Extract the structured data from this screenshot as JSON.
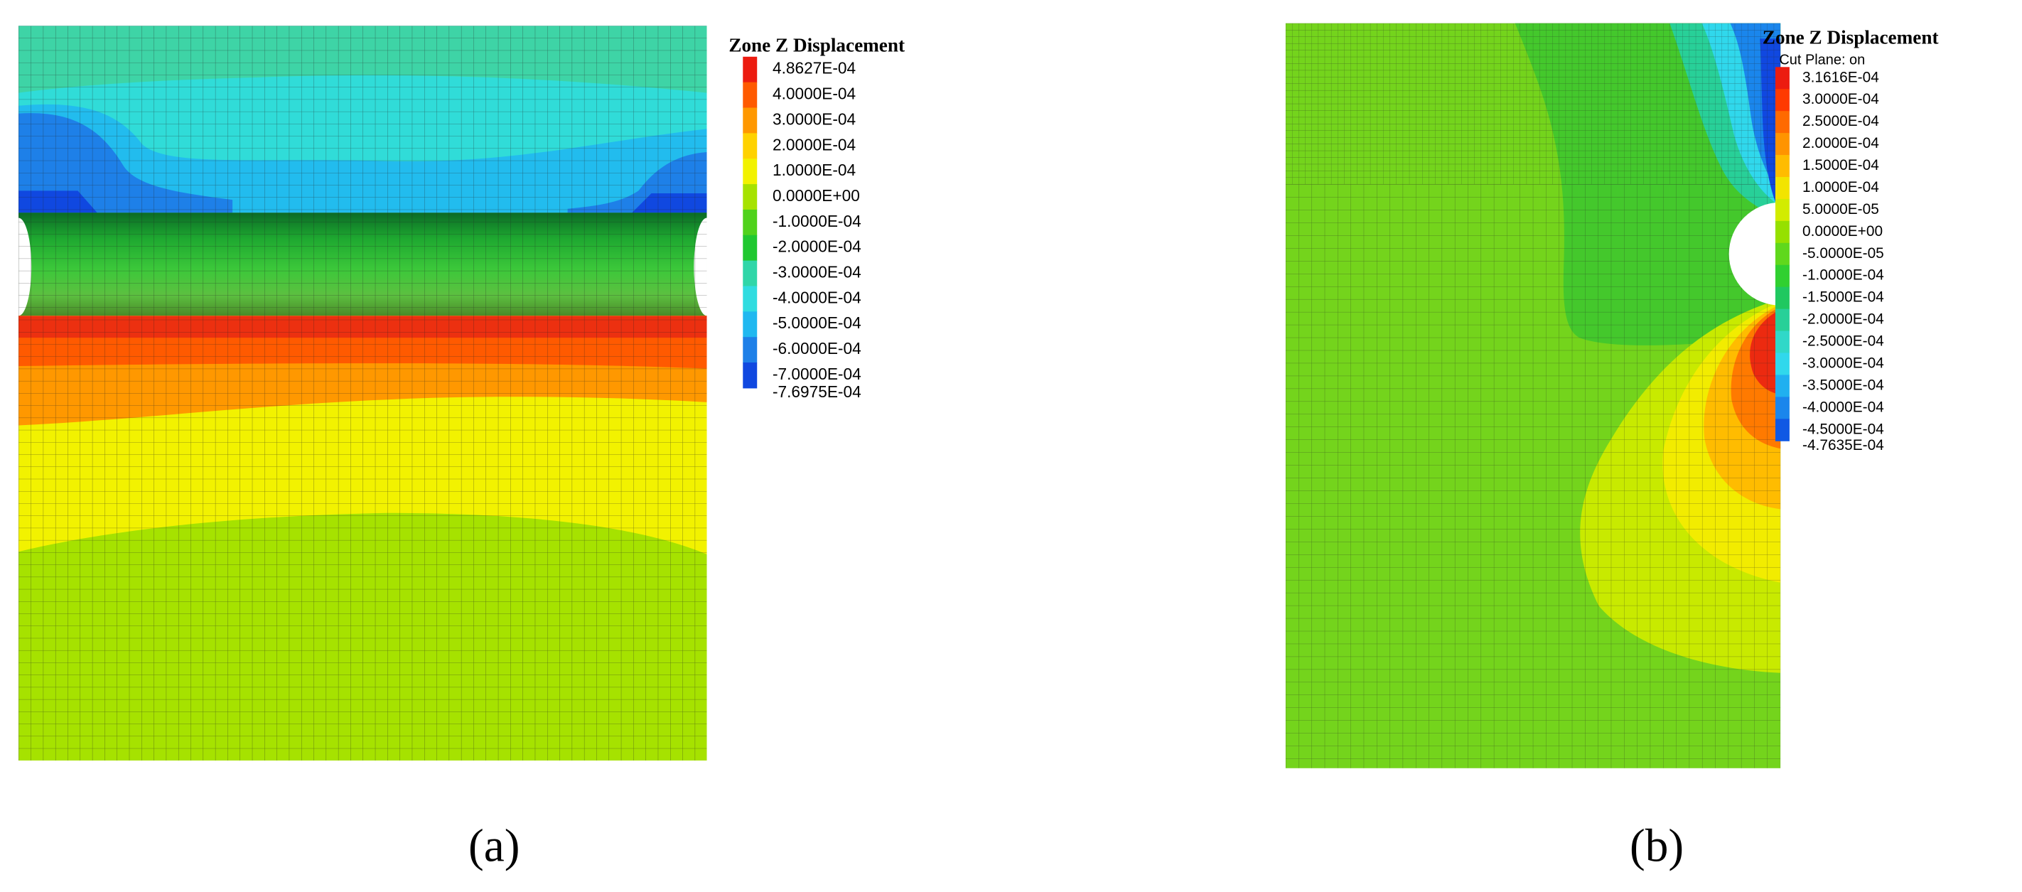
{
  "panels": [
    {
      "legend": {
        "title": "Zone Z Displacement",
        "entries": [
          {
            "label": "4.8627E-04",
            "color": "#ec1c10"
          },
          {
            "label": "4.0000E-04",
            "color": "#ff5a00"
          },
          {
            "label": "3.0000E-04",
            "color": "#ff9800"
          },
          {
            "label": "2.0000E-04",
            "color": "#ffd200"
          },
          {
            "label": "1.0000E-04",
            "color": "#f2f200"
          },
          {
            "label": "0.0000E+00",
            "color": "#a6e200"
          },
          {
            "label": "-1.0000E-04",
            "color": "#50d21c"
          },
          {
            "label": "-2.0000E-04",
            "color": "#20c830"
          },
          {
            "label": "-3.0000E-04",
            "color": "#30d6a8"
          },
          {
            "label": "-4.0000E-04",
            "color": "#30dce0"
          },
          {
            "label": "-5.0000E-04",
            "color": "#20b8f0"
          },
          {
            "label": "-6.0000E-04",
            "color": "#1e80e8"
          },
          {
            "label": "-7.0000E-04",
            "color": "#1048e0"
          },
          {
            "label": "-7.6975E-04",
            "color": "#0018e8"
          }
        ]
      },
      "label": "(a)"
    },
    {
      "legend": {
        "title": "Zone Z Displacement",
        "subtitle": "Cut Plane: on",
        "entries": [
          {
            "label": "3.1616E-04",
            "color": "#ec1c10"
          },
          {
            "label": "3.0000E-04",
            "color": "#ff3a00"
          },
          {
            "label": "2.5000E-04",
            "color": "#ff6a00"
          },
          {
            "label": "2.0000E-04",
            "color": "#ff9400"
          },
          {
            "label": "1.5000E-04",
            "color": "#ffbc00"
          },
          {
            "label": "1.0000E-04",
            "color": "#f2e400"
          },
          {
            "label": "5.0000E-05",
            "color": "#d2ec00"
          },
          {
            "label": "0.0000E+00",
            "color": "#96e000"
          },
          {
            "label": "-5.0000E-05",
            "color": "#60d81c"
          },
          {
            "label": "-1.0000E-04",
            "color": "#30d030"
          },
          {
            "label": "-1.5000E-04",
            "color": "#20c860"
          },
          {
            "label": "-2.0000E-04",
            "color": "#28d098"
          },
          {
            "label": "-2.5000E-04",
            "color": "#30d8c8"
          },
          {
            "label": "-3.0000E-04",
            "color": "#30d8ec"
          },
          {
            "label": "-3.5000E-04",
            "color": "#20b0f0"
          },
          {
            "label": "-4.0000E-04",
            "color": "#1a86ec"
          },
          {
            "label": "-4.5000E-04",
            "color": "#1058e4"
          },
          {
            "label": "-4.7635E-04",
            "color": "#0020e8"
          }
        ]
      },
      "label": "(b)"
    }
  ]
}
